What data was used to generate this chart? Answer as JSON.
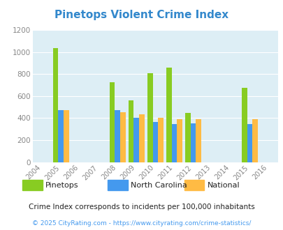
{
  "title": "Pinetops Violent Crime Index",
  "title_color": "#3388cc",
  "background_color": "#ffffff",
  "plot_bg_color": "#ddeef5",
  "years": [
    2004,
    2005,
    2006,
    2007,
    2008,
    2009,
    2010,
    2011,
    2012,
    2013,
    2014,
    2015,
    2016
  ],
  "data": {
    "Pinetops": {
      "years": [
        2005,
        2008,
        2009,
        2010,
        2011,
        2012,
        2015
      ],
      "values": [
        1035,
        725,
        558,
        808,
        858,
        445,
        675
      ],
      "color": "#88cc22"
    },
    "North Carolina": {
      "years": [
        2005,
        2008,
        2009,
        2010,
        2011,
        2012,
        2015
      ],
      "values": [
        475,
        472,
        402,
        362,
        348,
        355,
        348
      ],
      "color": "#4499ee"
    },
    "National": {
      "years": [
        2005,
        2008,
        2009,
        2010,
        2011,
        2012,
        2015
      ],
      "values": [
        470,
        455,
        432,
        403,
        390,
        388,
        390
      ],
      "color": "#ffbb44"
    }
  },
  "ylim": [
    0,
    1200
  ],
  "yticks": [
    0,
    200,
    400,
    600,
    800,
    1000,
    1200
  ],
  "legend_labels": [
    "Pinetops",
    "North Carolina",
    "National"
  ],
  "footnote1": "Crime Index corresponds to incidents per 100,000 inhabitants",
  "footnote2": "© 2025 CityRating.com - https://www.cityrating.com/crime-statistics/",
  "footnote1_color": "#222222",
  "footnote2_color": "#4499ee",
  "bar_width": 0.28,
  "grid_color": "#ffffff"
}
